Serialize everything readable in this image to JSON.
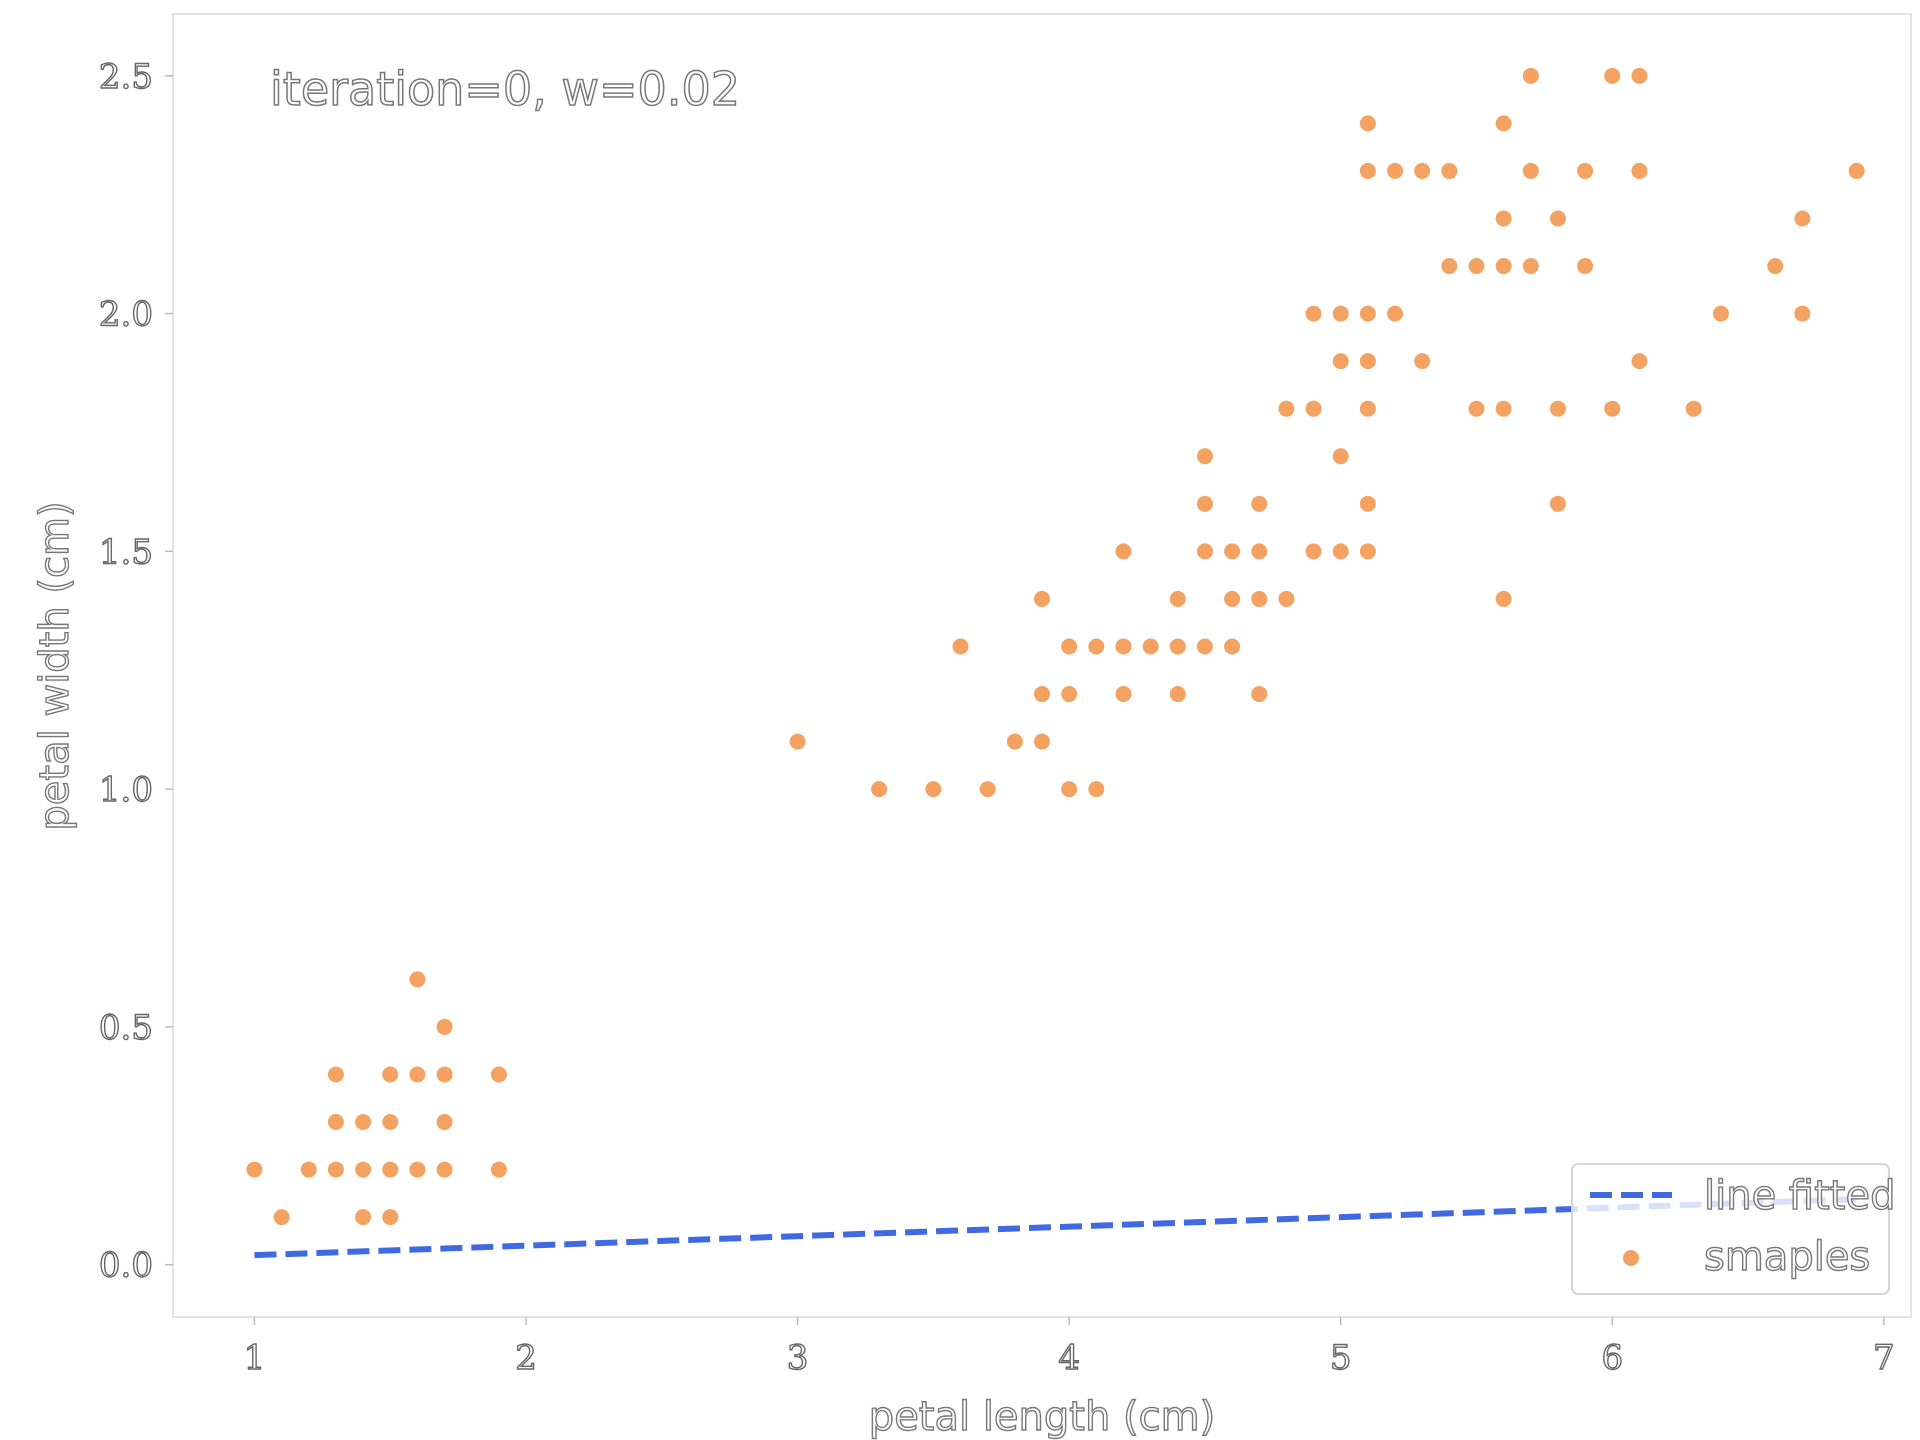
{
  "chart_data": {
    "type": "scatter",
    "title": "",
    "annotation": "iteration=0, w=0.02",
    "xlabel": "petal length (cm)",
    "ylabel": "petal width (cm)",
    "xlim": [
      0.7,
      7.1
    ],
    "ylim": [
      -0.11,
      2.63
    ],
    "xticks": [
      1,
      2,
      3,
      4,
      5,
      6,
      7
    ],
    "yticks": [
      0.0,
      0.5,
      1.0,
      1.5,
      2.0,
      2.5
    ],
    "ytick_labels": [
      "0.0",
      "0.5",
      "1.0",
      "1.5",
      "2.0",
      "2.5"
    ],
    "grid": false,
    "legend_position": "lower-right",
    "series": [
      {
        "name": "smaples",
        "kind": "scatter",
        "color": "#f4a261",
        "points": [
          [
            1.0,
            0.2
          ],
          [
            1.1,
            0.1
          ],
          [
            1.2,
            0.2
          ],
          [
            1.3,
            0.2
          ],
          [
            1.3,
            0.3
          ],
          [
            1.3,
            0.4
          ],
          [
            1.4,
            0.1
          ],
          [
            1.4,
            0.2
          ],
          [
            1.4,
            0.3
          ],
          [
            1.5,
            0.1
          ],
          [
            1.5,
            0.2
          ],
          [
            1.5,
            0.3
          ],
          [
            1.5,
            0.4
          ],
          [
            1.6,
            0.2
          ],
          [
            1.6,
            0.4
          ],
          [
            1.6,
            0.6
          ],
          [
            1.7,
            0.2
          ],
          [
            1.7,
            0.3
          ],
          [
            1.7,
            0.4
          ],
          [
            1.7,
            0.5
          ],
          [
            1.9,
            0.2
          ],
          [
            1.9,
            0.4
          ],
          [
            3.0,
            1.1
          ],
          [
            3.3,
            1.0
          ],
          [
            3.5,
            1.0
          ],
          [
            3.6,
            1.3
          ],
          [
            3.7,
            1.0
          ],
          [
            3.8,
            1.1
          ],
          [
            3.9,
            1.1
          ],
          [
            3.9,
            1.2
          ],
          [
            3.9,
            1.4
          ],
          [
            4.0,
            1.0
          ],
          [
            4.0,
            1.2
          ],
          [
            4.0,
            1.3
          ],
          [
            4.1,
            1.0
          ],
          [
            4.1,
            1.3
          ],
          [
            4.2,
            1.2
          ],
          [
            4.2,
            1.3
          ],
          [
            4.2,
            1.5
          ],
          [
            4.3,
            1.3
          ],
          [
            4.4,
            1.2
          ],
          [
            4.4,
            1.3
          ],
          [
            4.4,
            1.4
          ],
          [
            4.5,
            1.3
          ],
          [
            4.5,
            1.5
          ],
          [
            4.5,
            1.6
          ],
          [
            4.5,
            1.7
          ],
          [
            4.6,
            1.3
          ],
          [
            4.6,
            1.4
          ],
          [
            4.6,
            1.5
          ],
          [
            4.7,
            1.2
          ],
          [
            4.7,
            1.4
          ],
          [
            4.7,
            1.5
          ],
          [
            4.7,
            1.6
          ],
          [
            4.8,
            1.4
          ],
          [
            4.8,
            1.8
          ],
          [
            4.9,
            1.5
          ],
          [
            4.9,
            1.8
          ],
          [
            4.9,
            2.0
          ],
          [
            5.0,
            1.5
          ],
          [
            5.0,
            1.7
          ],
          [
            5.0,
            1.9
          ],
          [
            5.0,
            2.0
          ],
          [
            5.1,
            1.5
          ],
          [
            5.1,
            1.6
          ],
          [
            5.1,
            1.8
          ],
          [
            5.1,
            1.9
          ],
          [
            5.1,
            2.0
          ],
          [
            5.1,
            2.3
          ],
          [
            5.1,
            2.4
          ],
          [
            5.2,
            2.0
          ],
          [
            5.2,
            2.3
          ],
          [
            5.3,
            1.9
          ],
          [
            5.3,
            2.3
          ],
          [
            5.4,
            2.1
          ],
          [
            5.4,
            2.3
          ],
          [
            5.5,
            1.8
          ],
          [
            5.5,
            2.1
          ],
          [
            5.6,
            1.4
          ],
          [
            5.6,
            1.8
          ],
          [
            5.6,
            2.1
          ],
          [
            5.6,
            2.2
          ],
          [
            5.6,
            2.4
          ],
          [
            5.7,
            2.1
          ],
          [
            5.7,
            2.3
          ],
          [
            5.7,
            2.5
          ],
          [
            5.8,
            1.6
          ],
          [
            5.8,
            1.8
          ],
          [
            5.8,
            2.2
          ],
          [
            5.9,
            2.1
          ],
          [
            5.9,
            2.3
          ],
          [
            6.0,
            1.8
          ],
          [
            6.0,
            2.5
          ],
          [
            6.1,
            1.9
          ],
          [
            6.1,
            2.3
          ],
          [
            6.1,
            2.5
          ],
          [
            6.3,
            1.8
          ],
          [
            6.4,
            2.0
          ],
          [
            6.6,
            2.1
          ],
          [
            6.7,
            2.0
          ],
          [
            6.7,
            2.2
          ],
          [
            6.9,
            2.3
          ]
        ]
      },
      {
        "name": "line fitted",
        "kind": "line",
        "color": "#4169e1",
        "dash": true,
        "x": [
          1.0,
          6.9
        ],
        "y": [
          0.02,
          0.138
        ]
      }
    ]
  }
}
